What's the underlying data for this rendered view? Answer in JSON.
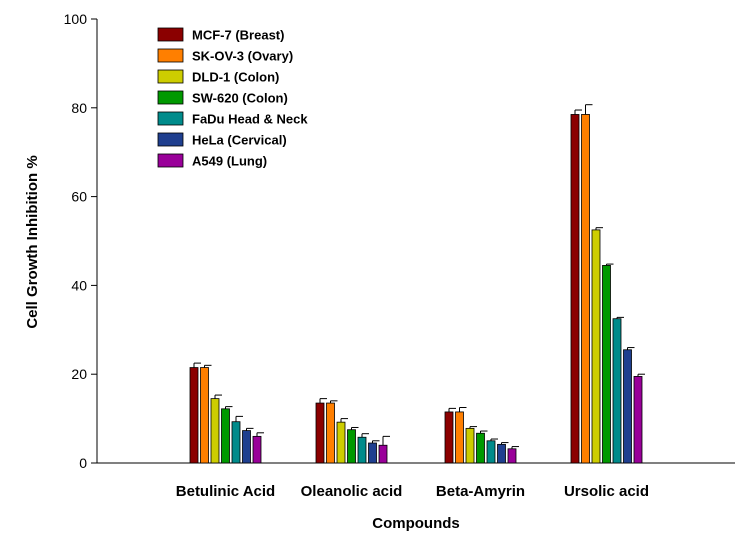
{
  "chart_data": {
    "type": "bar",
    "title": "",
    "xlabel": "Compounds",
    "ylabel": "Cell Growth Inhibition %",
    "ylim": [
      0,
      100
    ],
    "yticks": [
      0,
      20,
      40,
      60,
      80,
      100
    ],
    "grid": false,
    "legend_position": "top-left",
    "categories": [
      "Betulinic Acid",
      "Oleanolic acid",
      "Beta-Amyrin",
      "Ursolic acid"
    ],
    "series": [
      {
        "name": "MCF-7 (Breast)",
        "color": "#8B0000",
        "values": [
          21.5,
          13.5,
          11.5,
          78.5
        ],
        "errors": [
          1.0,
          1.0,
          0.8,
          1.0
        ]
      },
      {
        "name": "SK-OV-3 (Ovary)",
        "color": "#FF7F00",
        "values": [
          21.5,
          13.5,
          11.5,
          78.5
        ],
        "errors": [
          0.5,
          0.5,
          1.0,
          2.2
        ]
      },
      {
        "name": "DLD-1 (Colon)",
        "color": "#CDCD00",
        "values": [
          14.5,
          9.2,
          7.8,
          52.5
        ],
        "errors": [
          0.8,
          0.8,
          0.4,
          0.5
        ]
      },
      {
        "name": "SW-620 (Colon)",
        "color": "#009900",
        "values": [
          12.2,
          7.5,
          6.7,
          44.5
        ],
        "errors": [
          0.5,
          0.5,
          0.5,
          0.3
        ]
      },
      {
        "name": "FaDu Head & Neck",
        "color": "#008B8B",
        "values": [
          9.3,
          5.8,
          5.0,
          32.5
        ],
        "errors": [
          1.2,
          0.8,
          0.4,
          0.3
        ]
      },
      {
        "name": "HeLa (Cervical)",
        "color": "#1F3F8F",
        "values": [
          7.3,
          4.5,
          4.2,
          25.5
        ],
        "errors": [
          0.5,
          0.5,
          0.4,
          0.5
        ]
      },
      {
        "name": "A549 (Lung)",
        "color": "#990099",
        "values": [
          6.0,
          4.0,
          3.2,
          19.5
        ],
        "errors": [
          0.8,
          2.0,
          0.5,
          0.5
        ]
      }
    ]
  }
}
